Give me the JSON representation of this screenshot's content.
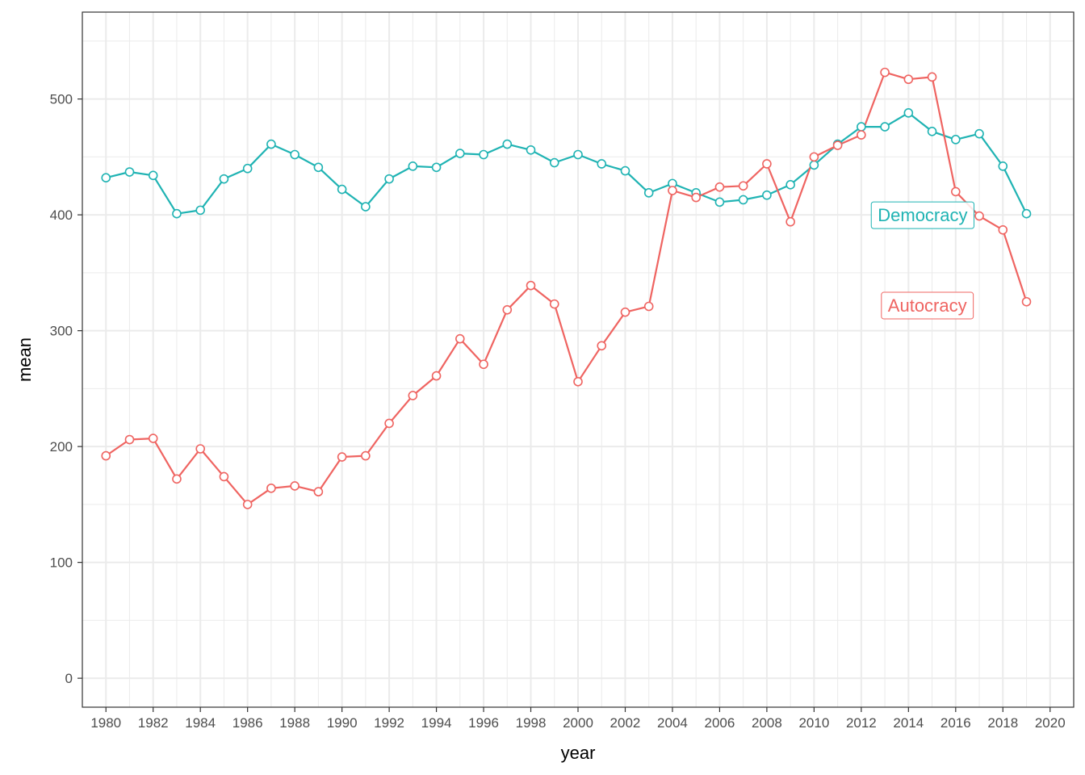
{
  "chart_data": {
    "type": "line",
    "title": "",
    "xlabel": "year",
    "ylabel": "mean",
    "xlim": [
      1979,
      2021
    ],
    "ylim": [
      -25,
      575
    ],
    "x_ticks": [
      1980,
      1982,
      1984,
      1986,
      1988,
      1990,
      1992,
      1994,
      1996,
      1998,
      2000,
      2002,
      2004,
      2006,
      2008,
      2010,
      2012,
      2014,
      2016,
      2018,
      2020
    ],
    "y_ticks": [
      0,
      100,
      200,
      300,
      400,
      500
    ],
    "grid": true,
    "legend": "none (direct labels)",
    "x": [
      1980,
      1981,
      1982,
      1983,
      1984,
      1985,
      1986,
      1987,
      1988,
      1989,
      1990,
      1991,
      1992,
      1993,
      1994,
      1995,
      1996,
      1997,
      1998,
      1999,
      2000,
      2001,
      2002,
      2003,
      2004,
      2005,
      2006,
      2007,
      2008,
      2009,
      2010,
      2011,
      2012,
      2013,
      2014,
      2015,
      2016,
      2017,
      2018,
      2019
    ],
    "series": [
      {
        "name": "Democracy",
        "color": "#1fb3b3",
        "label_at": [
          2014.6,
          400
        ],
        "values": [
          432,
          437,
          434,
          401,
          404,
          431,
          440,
          461,
          452,
          441,
          422,
          407,
          431,
          442,
          441,
          453,
          452,
          461,
          456,
          445,
          452,
          444,
          438,
          419,
          427,
          419,
          411,
          413,
          417,
          426,
          443,
          461,
          476,
          476,
          488,
          472,
          465,
          470,
          442,
          401
        ]
      },
      {
        "name": "Autocracy",
        "color": "#ef6461",
        "label_at": [
          2014.8,
          322
        ],
        "values": [
          192,
          206,
          207,
          172,
          198,
          174,
          150,
          164,
          166,
          161,
          191,
          192,
          220,
          244,
          261,
          293,
          271,
          318,
          339,
          323,
          256,
          287,
          316,
          321,
          421,
          415,
          424,
          425,
          444,
          394,
          450,
          460,
          469,
          523,
          517,
          519,
          420,
          399,
          387,
          325
        ]
      }
    ]
  }
}
